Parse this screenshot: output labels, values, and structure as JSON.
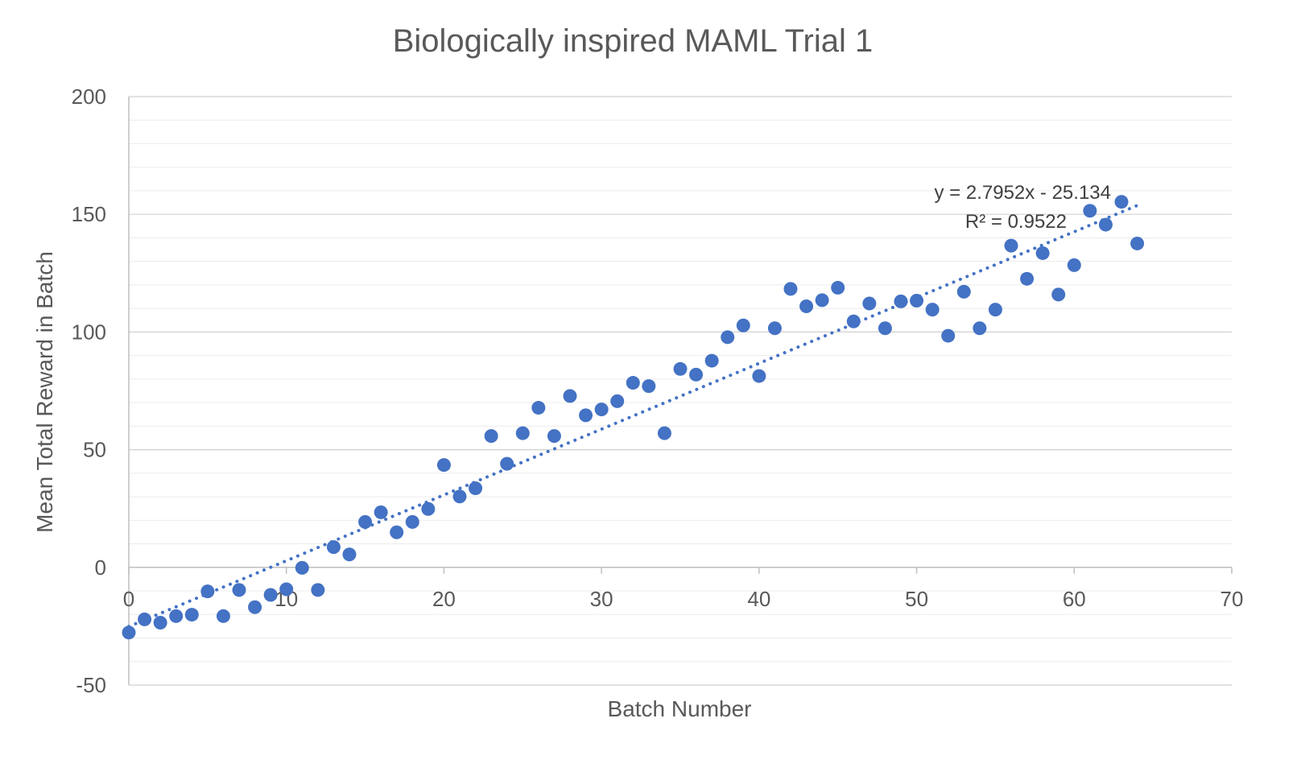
{
  "chart_data": {
    "type": "scatter",
    "title": "Biologically inspired MAML Trial 1",
    "xlabel": "Batch Number",
    "ylabel": "Mean Total Reward in Batch",
    "xlim": [
      0,
      70
    ],
    "ylim": [
      -50,
      200
    ],
    "xticks": [
      0,
      10,
      20,
      30,
      40,
      50,
      60,
      70
    ],
    "yticks": [
      -50,
      0,
      50,
      100,
      150,
      200
    ],
    "minor_grid_step": 10,
    "grid": true,
    "legend": "none",
    "series": [
      {
        "name": "Mean Total Reward",
        "color": "#4472C4",
        "x": [
          0,
          1,
          2,
          3,
          4,
          5,
          6,
          7,
          8,
          9,
          10,
          11,
          12,
          13,
          14,
          15,
          16,
          17,
          18,
          19,
          20,
          21,
          22,
          23,
          24,
          25,
          26,
          27,
          28,
          29,
          30,
          31,
          32,
          33,
          34,
          35,
          36,
          37,
          38,
          39,
          40,
          41,
          42,
          43,
          44,
          45,
          46,
          47,
          48,
          49,
          50,
          51,
          52,
          53,
          54,
          55,
          56,
          57,
          58,
          59,
          60,
          61,
          62,
          63,
          64
        ],
        "y": [
          -27.7,
          -22.1,
          -23.5,
          -20.7,
          -20.1,
          -10.2,
          -20.7,
          -9.6,
          -16.9,
          -11.7,
          -9.3,
          -0.2,
          -9.6,
          8.6,
          5.5,
          19.3,
          23.4,
          14.9,
          19.3,
          24.8,
          43.5,
          30.1,
          33.6,
          55.8,
          44.0,
          57.0,
          67.8,
          55.8,
          72.8,
          64.6,
          67.1,
          70.6,
          78.4,
          77.0,
          57.0,
          84.3,
          81.9,
          87.8,
          97.8,
          102.8,
          81.3,
          101.6,
          118.3,
          110.9,
          113.5,
          118.8,
          104.5,
          112.1,
          101.6,
          113.0,
          113.3,
          109.5,
          98.4,
          117.1,
          101.6,
          109.5,
          136.7,
          122.6,
          133.5,
          115.9,
          128.4,
          151.5,
          145.6,
          155.3,
          137.6
        ]
      }
    ],
    "trendline": {
      "type": "linear",
      "style": "dotted",
      "color": "#4472C4",
      "slope": 2.7952,
      "intercept": -25.134,
      "x_range": [
        0,
        64
      ],
      "equation_label": "y = 2.7952x - 25.134",
      "r2_label": "R² = 0.9522"
    }
  }
}
